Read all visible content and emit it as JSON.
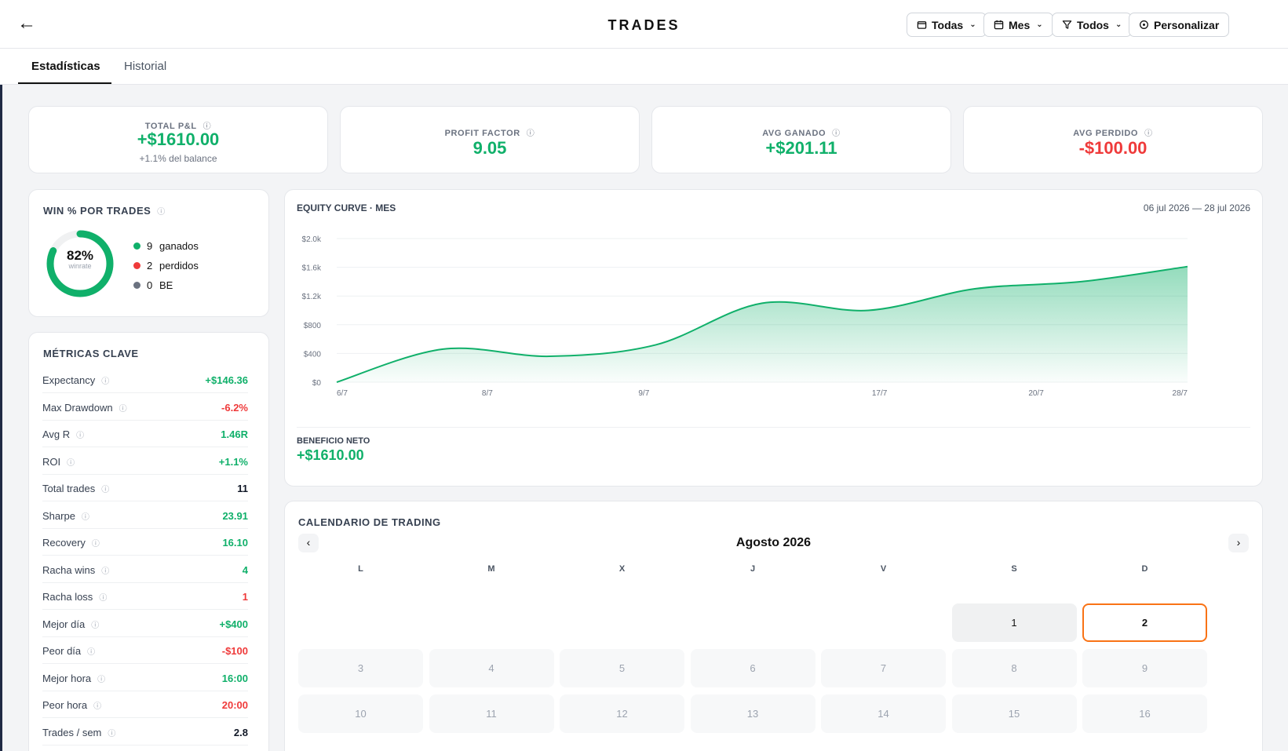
{
  "header": {
    "back_glyph": "←",
    "title": "TRADES",
    "buttons": [
      {
        "label": "Todas",
        "icon": "wallet-icon"
      },
      {
        "label": "Mes",
        "icon": "calendar-icon"
      },
      {
        "label": "Todos",
        "icon": "filter-icon"
      },
      {
        "label": "Personalizar",
        "icon": "customize-icon"
      }
    ]
  },
  "tabs": [
    {
      "label": "Estadísticas",
      "active": true
    },
    {
      "label": "Historial",
      "active": false
    }
  ],
  "kpis": [
    {
      "label": "TOTAL P&L",
      "value": "+$1610.00",
      "sub": "+1.1% del balance",
      "tone": "green"
    },
    {
      "label": "PROFIT FACTOR",
      "value": "9.05",
      "sub": "",
      "tone": "green"
    },
    {
      "label": "AVG GANADO",
      "value": "+$201.11",
      "sub": "",
      "tone": "green"
    },
    {
      "label": "AVG PERDIDO",
      "value": "-$100.00",
      "sub": "",
      "tone": "red"
    }
  ],
  "win": {
    "title": "WIN % POR TRADES",
    "pct": "82%",
    "pct_label": "winrate",
    "winrate": 0.82,
    "legend": [
      {
        "count": "9",
        "label": "ganados",
        "color": "#10b06a"
      },
      {
        "count": "2",
        "label": "perdidos",
        "color": "#ef3a3a"
      },
      {
        "count": "0",
        "label": "BE",
        "color": "#6b7280"
      }
    ]
  },
  "metrics": {
    "title": "MÉTRICAS CLAVE",
    "rows": [
      {
        "label": "Expectancy",
        "value": "+$146.36",
        "tone": "green"
      },
      {
        "label": "Max Drawdown",
        "value": "-6.2%",
        "tone": "red"
      },
      {
        "label": "Avg R",
        "value": "1.46R",
        "tone": "green"
      },
      {
        "label": "ROI",
        "value": "+1.1%",
        "tone": "green"
      },
      {
        "label": "Total trades",
        "value": "11",
        "tone": "dark"
      },
      {
        "label": "Sharpe",
        "value": "23.91",
        "tone": "green"
      },
      {
        "label": "Recovery",
        "value": "16.10",
        "tone": "green"
      },
      {
        "label": "Racha wins",
        "value": "4",
        "tone": "green"
      },
      {
        "label": "Racha loss",
        "value": "1",
        "tone": "red"
      },
      {
        "label": "Mejor día",
        "value": "+$400",
        "tone": "green"
      },
      {
        "label": "Peor día",
        "value": "-$100",
        "tone": "red"
      },
      {
        "label": "Mejor hora",
        "value": "16:00",
        "tone": "green"
      },
      {
        "label": "Peor hora",
        "value": "20:00",
        "tone": "red"
      },
      {
        "label": "Trades / sem",
        "value": "2.8",
        "tone": "dark"
      }
    ]
  },
  "equity": {
    "title": "EQUITY CURVE · MES",
    "range": "06 jul 2026 — 28 jul 2026",
    "net_label": "BENEFICIO NETO",
    "net_value": "+$1610.00"
  },
  "chart_data": {
    "type": "area",
    "title": "EQUITY CURVE · MES",
    "x_ticks": [
      "6/7",
      "8/7",
      "9/7",
      "17/7",
      "20/7",
      "28/7"
    ],
    "x": [
      "6/7",
      "8/7",
      "8/7",
      "9/7",
      "12/7",
      "17/7",
      "20/7",
      "24/7",
      "28/7"
    ],
    "values": [
      0,
      460,
      360,
      520,
      1100,
      1000,
      1300,
      1400,
      1610
    ],
    "y_ticks": [
      "$0",
      "$400",
      "$800",
      "$1.2k",
      "$1.6k",
      "$2.0k"
    ],
    "ylim": [
      0,
      2000
    ],
    "grid": true,
    "color": "#10b06a"
  },
  "calendar": {
    "title": "CALENDARIO DE TRADING",
    "month": "Agosto 2026",
    "prev": "‹",
    "next": "›",
    "weekdays": [
      "L",
      "M",
      "X",
      "J",
      "V",
      "S",
      "D"
    ],
    "first_weekday_offset": 5,
    "visible_days": [
      "1",
      "2",
      "3",
      "4",
      "5",
      "6",
      "7",
      "8",
      "9",
      "10",
      "11",
      "12",
      "13",
      "14",
      "15",
      "16"
    ],
    "active_days": [
      "1"
    ],
    "today": "2"
  }
}
